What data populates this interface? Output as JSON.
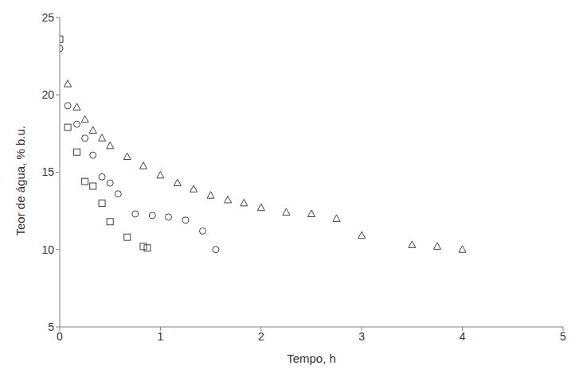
{
  "chart_data": {
    "type": "scatter",
    "x_label": "Tempo, h",
    "y_label": "Teor de água, % b.u.",
    "xlim": [
      0,
      5
    ],
    "xticks": [
      0,
      1,
      2,
      3,
      4,
      5
    ],
    "ylim": [
      5,
      25
    ],
    "yticks": [
      5,
      10,
      15,
      20,
      25
    ],
    "grid": false,
    "series": [
      {
        "marker": "square",
        "color": "#404040",
        "x": [
          0,
          0.08,
          0.17,
          0.25,
          0.33,
          0.42,
          0.5,
          0.67,
          0.83,
          0.87
        ],
        "values": [
          23.6,
          17.9,
          16.3,
          14.4,
          14.1,
          13.0,
          11.8,
          10.8,
          10.2,
          10.1
        ]
      },
      {
        "marker": "circle",
        "color": "#404040",
        "x": [
          0,
          0.08,
          0.17,
          0.25,
          0.33,
          0.42,
          0.5,
          0.58,
          0.75,
          0.92,
          1.08,
          1.25,
          1.42,
          1.55
        ],
        "values": [
          23.0,
          19.3,
          18.1,
          17.2,
          16.1,
          14.7,
          14.3,
          13.6,
          12.3,
          12.2,
          12.1,
          11.9,
          11.2,
          10.0
        ]
      },
      {
        "marker": "triangle",
        "color": "#404040",
        "x": [
          0.08,
          0.17,
          0.25,
          0.33,
          0.42,
          0.5,
          0.67,
          0.83,
          1.0,
          1.17,
          1.33,
          1.5,
          1.67,
          1.83,
          2.0,
          2.25,
          2.5,
          2.75,
          3.0,
          3.5,
          3.75,
          4.0
        ],
        "values": [
          20.7,
          19.2,
          18.4,
          17.7,
          17.2,
          16.7,
          16.0,
          15.4,
          14.8,
          14.3,
          13.9,
          13.5,
          13.2,
          13.0,
          12.7,
          12.4,
          12.3,
          12.0,
          10.9,
          10.3,
          10.2,
          10.0
        ]
      }
    ]
  }
}
